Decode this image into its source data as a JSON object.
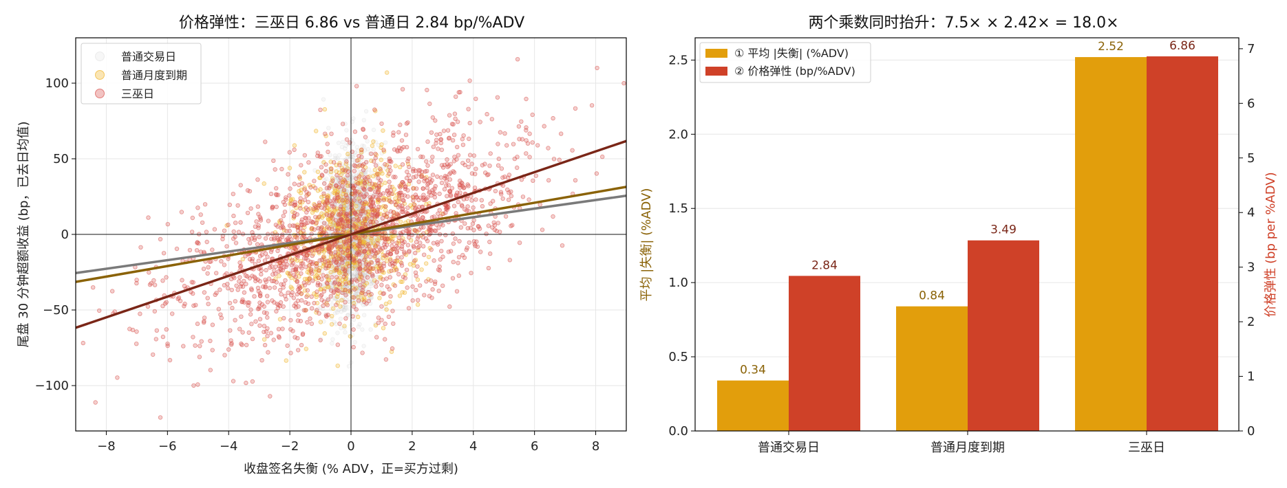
{
  "chart_data": [
    {
      "type": "scatter",
      "title": "价格弹性：三巫日 6.86 vs 普通日 2.84 bp/%ADV",
      "xlabel": "收盘签名失衡 (% ADV，正=买方过剩)",
      "ylabel": "尾盘 30 分钟超额收益 (bp，已去日均值)",
      "xlim": [
        -9,
        9
      ],
      "ylim": [
        -130,
        130
      ],
      "xticks": [
        -8,
        -6,
        -4,
        -2,
        0,
        2,
        4,
        6,
        8
      ],
      "yticks": [
        -100,
        -50,
        0,
        50,
        100
      ],
      "grid": true,
      "legend_position": "top-left",
      "series": [
        {
          "name": "普通交易日",
          "color": "#c8c8c8",
          "point_count": 1500,
          "x_spread": 0.45,
          "noise_sd": 26,
          "slope": 2.84
        },
        {
          "name": "普通月度到期",
          "color": "#f0b429",
          "point_count": 700,
          "x_spread": 1.05,
          "noise_sd": 26,
          "slope": 3.49
        },
        {
          "name": "三巫日",
          "color": "#d9534f",
          "point_count": 1800,
          "x_spread": 2.8,
          "noise_sd": 28,
          "slope": 6.86
        }
      ],
      "fit_lines": [
        {
          "series": "普通交易日",
          "slope": 2.84,
          "color": "#7a7a7a"
        },
        {
          "series": "普通月度到期",
          "slope": 3.49,
          "color": "#8a6206"
        },
        {
          "series": "三巫日",
          "slope": 6.86,
          "color": "#7a2617"
        }
      ]
    },
    {
      "type": "bar",
      "title": "两个乘数同时抬升：7.5× × 2.42× = 18.0×",
      "categories": [
        "普通交易日",
        "普通月度到期",
        "三巫日"
      ],
      "series": [
        {
          "name": "① 平均 |失衡| (%ADV)",
          "values": [
            0.34,
            0.84,
            2.52
          ],
          "labels": [
            "0.34",
            "0.84",
            "2.52"
          ],
          "color": "#e29e0c",
          "label_color": "#8a6206",
          "axis": "left"
        },
        {
          "name": "② 价格弹性 (bp/%ADV)",
          "values": [
            2.84,
            3.49,
            6.86
          ],
          "labels": [
            "2.84",
            "3.49",
            "6.86"
          ],
          "color": "#cf4128",
          "label_color": "#7a2617",
          "axis": "right"
        }
      ],
      "ylabel_left": "平均 |失衡| (%ADV)",
      "ylabel_right": "价格弹性 (bp per %ADV)",
      "ylim_left": [
        0,
        2.65
      ],
      "ylim_right": [
        0,
        7.2
      ],
      "yticks_left": [
        "0.0",
        "0.5",
        "1.0",
        "1.5",
        "2.0",
        "2.5"
      ],
      "yticks_right": [
        "0",
        "1",
        "2",
        "3",
        "4",
        "5",
        "6",
        "7"
      ],
      "legend_position": "top-left",
      "grid": true
    }
  ]
}
